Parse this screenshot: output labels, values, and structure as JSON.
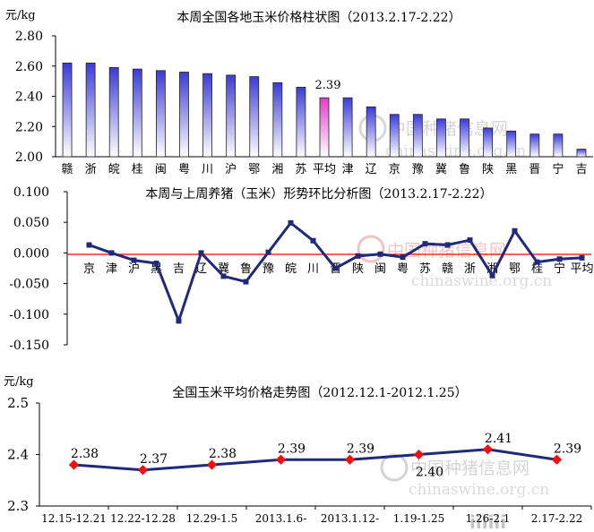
{
  "chart_data": [
    {
      "type": "bar",
      "title": "本周全国各地玉米价格柱状图（2013.2.17-2.22）",
      "ylabel": "元/kg",
      "ylim": [
        2.0,
        2.8
      ],
      "yticks": [
        "2.00",
        "2.20",
        "2.40",
        "2.60",
        "2.80"
      ],
      "categories": [
        "赣",
        "浙",
        "皖",
        "桂",
        "闽",
        "粤",
        "川",
        "沪",
        "鄂",
        "湘",
        "苏",
        "平均",
        "津",
        "辽",
        "京",
        "豫",
        "冀",
        "鲁",
        "陕",
        "黑",
        "晋",
        "宁",
        "吉"
      ],
      "values": [
        2.62,
        2.62,
        2.59,
        2.58,
        2.57,
        2.56,
        2.55,
        2.54,
        2.53,
        2.49,
        2.46,
        2.39,
        2.39,
        2.33,
        2.28,
        2.28,
        2.25,
        2.25,
        2.19,
        2.17,
        2.15,
        2.15,
        2.05
      ],
      "highlight_label": "2.39",
      "highlight_index": 11,
      "colors": {
        "bar": "#3b3bd9",
        "bar_highlight": "#e03cc8",
        "axis": "#000000"
      },
      "grid": false,
      "legend": "none"
    },
    {
      "type": "line",
      "title": "本周与上周养猪（玉米）形势环比分析图（2013.2.17-2.22）",
      "ylim": [
        -0.15,
        0.1
      ],
      "yticks": [
        "0.100",
        "0.050",
        "0.000",
        "-0.050",
        "-0.100",
        "-0.150"
      ],
      "categories": [
        "京",
        "津",
        "沪",
        "黑",
        "吉",
        "辽",
        "冀",
        "鲁",
        "豫",
        "皖",
        "川",
        "晋",
        "陕",
        "闽",
        "粤",
        "苏",
        "赣",
        "浙",
        "湘",
        "鄂",
        "桂",
        "宁",
        "平均"
      ],
      "values": [
        0.013,
        0.0,
        -0.012,
        -0.017,
        -0.111,
        0.0,
        -0.038,
        -0.047,
        0.001,
        0.049,
        0.02,
        -0.025,
        -0.005,
        -0.002,
        -0.007,
        0.015,
        0.013,
        0.021,
        -0.037,
        0.036,
        -0.015,
        -0.01,
        -0.008
      ],
      "colors": {
        "line": "#1f2a7a",
        "zero_line": "#ff0000",
        "axis": "#000000"
      },
      "grid": false,
      "legend": "none"
    },
    {
      "type": "line",
      "title": "全国玉米平均价格走势图（2012.12.1-2012.1.25）",
      "ylabel": "元/kg",
      "ylim": [
        2.3,
        2.5
      ],
      "yticks": [
        "2.5",
        "2.4",
        "2.3"
      ],
      "categories": [
        "12.15-12.21",
        "12.22-12.28",
        "12.29-1.5",
        "2013.1.6-",
        "2013.1.12-",
        "1.19-1.25",
        "1.26-2.1",
        "2.17-2.22"
      ],
      "values": [
        2.38,
        2.37,
        2.38,
        2.39,
        2.39,
        2.4,
        2.41,
        2.39
      ],
      "data_labels": [
        "2.38",
        "2.37",
        "2.38",
        "2.39",
        "2.39",
        "2.40",
        "2.41",
        "2.39"
      ],
      "colors": {
        "line": "#1f2a7a",
        "marker": "#ee1111",
        "axis": "#000000"
      },
      "grid": false,
      "legend": "none"
    }
  ],
  "watermark": {
    "cn": "中国种猪信息网",
    "url": "chinaswine.org.cn",
    "logo": "iiiiii",
    "colors": {
      "dark": "#c9c9c9",
      "accent": "#f2b8b8"
    }
  }
}
